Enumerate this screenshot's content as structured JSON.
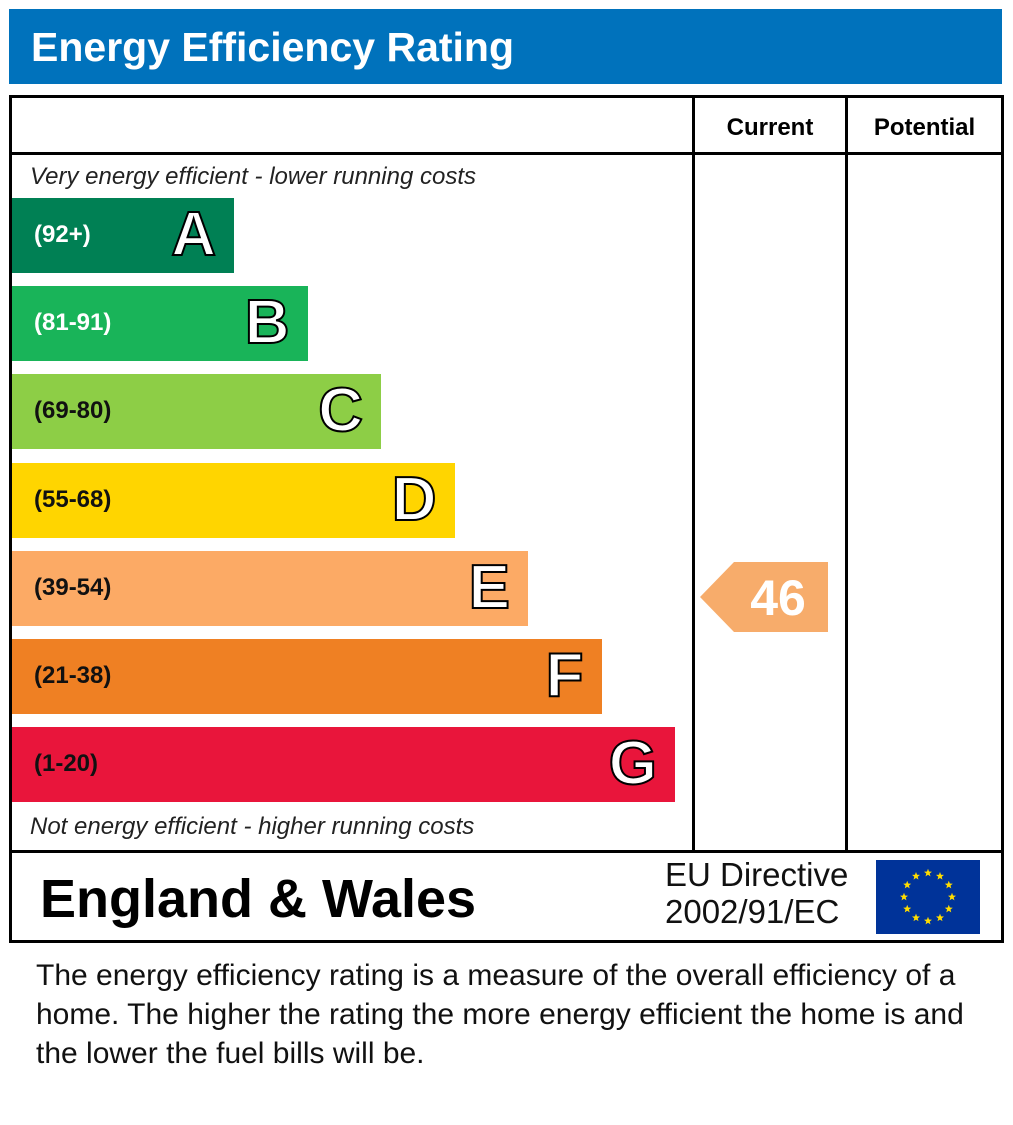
{
  "header": {
    "title": "Energy Efficiency Rating",
    "bg_color": "#0072bc"
  },
  "columns": {
    "current": "Current",
    "potential": "Potential"
  },
  "captions": {
    "top": "Very energy efficient - lower running costs",
    "bottom": "Not energy efficient - higher running costs"
  },
  "chart_data": {
    "type": "bar",
    "bands": [
      {
        "letter": "A",
        "range": "(92+)",
        "color": "#008054",
        "text_color": "#ffffff"
      },
      {
        "letter": "B",
        "range": "(81-91)",
        "color": "#19b459",
        "text_color": "#ffffff"
      },
      {
        "letter": "C",
        "range": "(69-80)",
        "color": "#8dce46",
        "text_color": "#111111"
      },
      {
        "letter": "D",
        "range": "(55-68)",
        "color": "#ffd500",
        "text_color": "#111111"
      },
      {
        "letter": "E",
        "range": "(39-54)",
        "color": "#fcaa65",
        "text_color": "#111111"
      },
      {
        "letter": "F",
        "range": "(21-38)",
        "color": "#ef8023",
        "text_color": "#111111"
      },
      {
        "letter": "G",
        "range": "(1-20)",
        "color": "#e9153b",
        "text_color": "#111111"
      }
    ],
    "current": {
      "value": "46",
      "band": "E",
      "color": "#f7ac6b"
    },
    "potential": null
  },
  "footer": {
    "country": "England & Wales",
    "directive_line1": "EU Directive",
    "directive_line2": "2002/91/EC",
    "flag_color": "#003399",
    "star_color": "#ffdd00"
  },
  "description": "The energy efficiency rating is a measure of the overall efficiency of a home.  The higher the rating the more energy efficient the home is and the lower the fuel bills will be."
}
